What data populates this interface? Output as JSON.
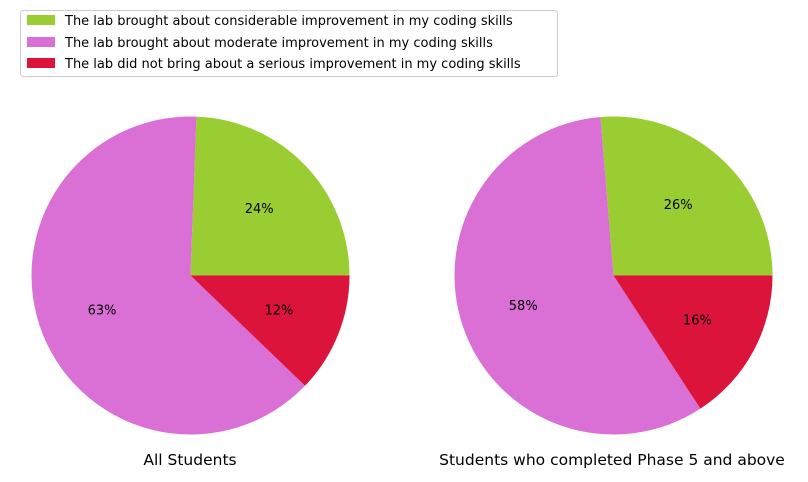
{
  "legend": {
    "placement": "top-left",
    "items": [
      {
        "label": "The lab brought about considerable improvement in my coding skills",
        "color": "#9acd32"
      },
      {
        "label": "The lab brought about moderate improvement in my coding skills",
        "color": "#da70d6"
      },
      {
        "label": "The lab did not bring about a serious improvement in my coding skills",
        "color": "#dc143c"
      }
    ]
  },
  "chart_data": [
    {
      "type": "pie",
      "title": "All Students",
      "categories": [
        "The lab brought about considerable improvement in my coding skills",
        "The lab brought about moderate improvement in my coding skills",
        "The lab did not bring about a serious improvement in my coding skills"
      ],
      "values": [
        24.4,
        63.4,
        12.2
      ],
      "labels": [
        "24%",
        "63%",
        "12%"
      ],
      "colors": [
        "#9acd32",
        "#da70d6",
        "#dc143c"
      ],
      "start_angle": 0,
      "direction": "counterclockwise"
    },
    {
      "type": "pie",
      "title": "Students who completed Phase 5 and above",
      "categories": [
        "The lab brought about considerable improvement in my coding skills",
        "The lab brought about moderate improvement in my coding skills",
        "The lab did not bring about a serious improvement in my coding skills"
      ],
      "values": [
        26.3,
        57.9,
        15.8
      ],
      "labels": [
        "26%",
        "58%",
        "16%"
      ],
      "colors": [
        "#9acd32",
        "#da70d6",
        "#dc143c"
      ],
      "start_angle": 0,
      "direction": "counterclockwise"
    }
  ]
}
